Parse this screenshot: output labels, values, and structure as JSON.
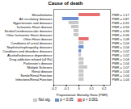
{
  "chart_data": {
    "type": "bar",
    "orientation": "horizontal",
    "title": "Cause of death",
    "xlabel": "Proportionate Mortality Ratio (PMR)",
    "categories": [
      "Mesothelioma",
      "All circulatory diseases",
      "Hypertension and diseases",
      "Ischaemic Heart disease",
      "Stroke/Cerebrovascular diseases",
      "Other Ischaemic Heart diseases",
      "Other Heart disease",
      "Conditions of urinal diseases",
      "Nephritis/nephropathy diseases",
      "Conditions and disorders diseases",
      "Alcohol/substance dependence",
      "Drug addiction related (all Rx)",
      "Parkinson's disease",
      "Multiple Sclerosis",
      "Renal disease",
      "Senile/Renal Function",
      "Infections/Renal Function"
    ],
    "values": [
      0.17,
      -0.13,
      -0.08,
      -0.06,
      -0.04,
      -0.04,
      0.08,
      0.04,
      0.04,
      0.02,
      0.02,
      0.04,
      0.04,
      0.07,
      0.04,
      0.04,
      0.04
    ],
    "value_labels": [
      "PMR = 1.17",
      "PMR = 0.87",
      "PMR = 0.92",
      "PMR = 0.94",
      "PMR = 0.96",
      "PMR = 0.96",
      "PMR = 1.08",
      "PMR = 1.04",
      "PMR = 1.04",
      "PMR = 1.02",
      "PMR = 1.02",
      "PMR = 1.04",
      "PMR = 1.04",
      "PMR = 1.07",
      "PMR = 1.04",
      "PMR = 1.04",
      "PMR = 1.04"
    ],
    "colors": [
      "#e87070",
      "#7090d0",
      "#c8c8c8",
      "#c8c8c8",
      "#c8c8c8",
      "#c8c8c8",
      "#e87070",
      "#c8c8c8",
      "#7090d0",
      "#7090d0",
      "#c8c8c8",
      "#c8c8c8",
      "#c8c8c8",
      "#c8c8c8",
      "#c8c8c8",
      "#c8c8c8",
      "#c8c8c8"
    ],
    "legend_labels": [
      "Not sig.",
      "p < 0.05",
      "p < 0.001"
    ],
    "legend_colors": [
      "#c8c8c8",
      "#7090d0",
      "#e87070"
    ],
    "legend": "bottom",
    "xlim": [
      -0.2,
      0.25
    ],
    "xticks": [
      -0.2,
      -0.1,
      0,
      0.1,
      0.2
    ],
    "grid": false
  }
}
